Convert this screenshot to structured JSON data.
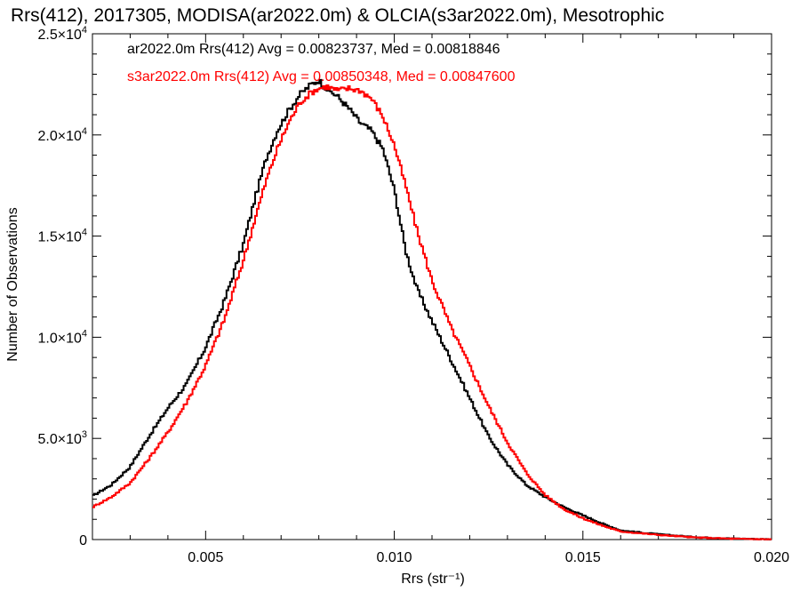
{
  "chart_data": {
    "type": "line",
    "title": "Rrs(412), 2017305, MODISA(ar2022.0m) & OLCIA(s3ar2022.0m), Mesotrophic",
    "xlabel": "Rrs (str⁻¹)",
    "ylabel": "Number of Observations",
    "xlim": [
      0.002,
      0.02
    ],
    "ylim": [
      0,
      25000
    ],
    "x_ticks": [
      {
        "value": 0.005,
        "label": "0.005"
      },
      {
        "value": 0.01,
        "label": "0.010"
      },
      {
        "value": 0.015,
        "label": "0.015"
      },
      {
        "value": 0.02,
        "label": "0.020"
      }
    ],
    "y_ticks": [
      {
        "value": 0,
        "label": "0"
      },
      {
        "value": 5000,
        "label": "5.0×10",
        "exp": "3"
      },
      {
        "value": 10000,
        "label": "1.0×10",
        "exp": "4"
      },
      {
        "value": 15000,
        "label": "1.5×10",
        "exp": "4"
      },
      {
        "value": 20000,
        "label": "2.0×10",
        "exp": "4"
      },
      {
        "value": 25000,
        "label": "2.5×10",
        "exp": "4"
      }
    ],
    "grid": false,
    "series": [
      {
        "name": "ar2022.0m",
        "color": "#000000",
        "annotation": "ar2022.0m Rrs(412) Avg = 0.00823737, Med = 0.00818846",
        "x": [
          0.002,
          0.0025,
          0.003,
          0.0035,
          0.004,
          0.0045,
          0.005,
          0.0055,
          0.006,
          0.0063,
          0.0066,
          0.0069,
          0.0072,
          0.0075,
          0.0078,
          0.008,
          0.0082,
          0.0085,
          0.0088,
          0.0091,
          0.0094,
          0.0097,
          0.01,
          0.0103,
          0.0106,
          0.011,
          0.0115,
          0.012,
          0.0125,
          0.013,
          0.0135,
          0.014,
          0.0145,
          0.015,
          0.0155,
          0.016,
          0.017,
          0.018,
          0.019,
          0.02
        ],
        "y": [
          2150,
          2700,
          3600,
          5100,
          6500,
          7700,
          9500,
          11800,
          14600,
          16800,
          18800,
          20200,
          21200,
          22000,
          22500,
          22700,
          22300,
          21900,
          21300,
          20600,
          20200,
          19300,
          17300,
          14300,
          12400,
          10800,
          8900,
          7000,
          5100,
          3700,
          2700,
          2100,
          1600,
          1200,
          800,
          450,
          260,
          120,
          50,
          15
        ]
      },
      {
        "name": "s3ar2022.0m",
        "color": "#ff0000",
        "annotation": "s3ar2022.0m Rrs(412) Avg = 0.00850348, Med = 0.00847600",
        "x": [
          0.002,
          0.0025,
          0.003,
          0.0035,
          0.004,
          0.0045,
          0.005,
          0.0055,
          0.006,
          0.0063,
          0.0066,
          0.0069,
          0.0072,
          0.0075,
          0.0078,
          0.008,
          0.0082,
          0.0085,
          0.0088,
          0.0091,
          0.0094,
          0.0097,
          0.01,
          0.0103,
          0.0106,
          0.011,
          0.0115,
          0.012,
          0.0125,
          0.013,
          0.0135,
          0.014,
          0.0145,
          0.015,
          0.0155,
          0.016,
          0.017,
          0.018,
          0.019,
          0.02
        ],
        "y": [
          1600,
          2100,
          2800,
          4000,
          5300,
          6800,
          8600,
          10900,
          13800,
          15800,
          17700,
          19300,
          20600,
          21600,
          22100,
          22300,
          22400,
          22200,
          22300,
          22200,
          21800,
          20900,
          19500,
          17500,
          15300,
          12800,
          10500,
          8600,
          6600,
          4800,
          3300,
          2200,
          1500,
          1050,
          700,
          400,
          230,
          100,
          40,
          10
        ]
      }
    ]
  }
}
